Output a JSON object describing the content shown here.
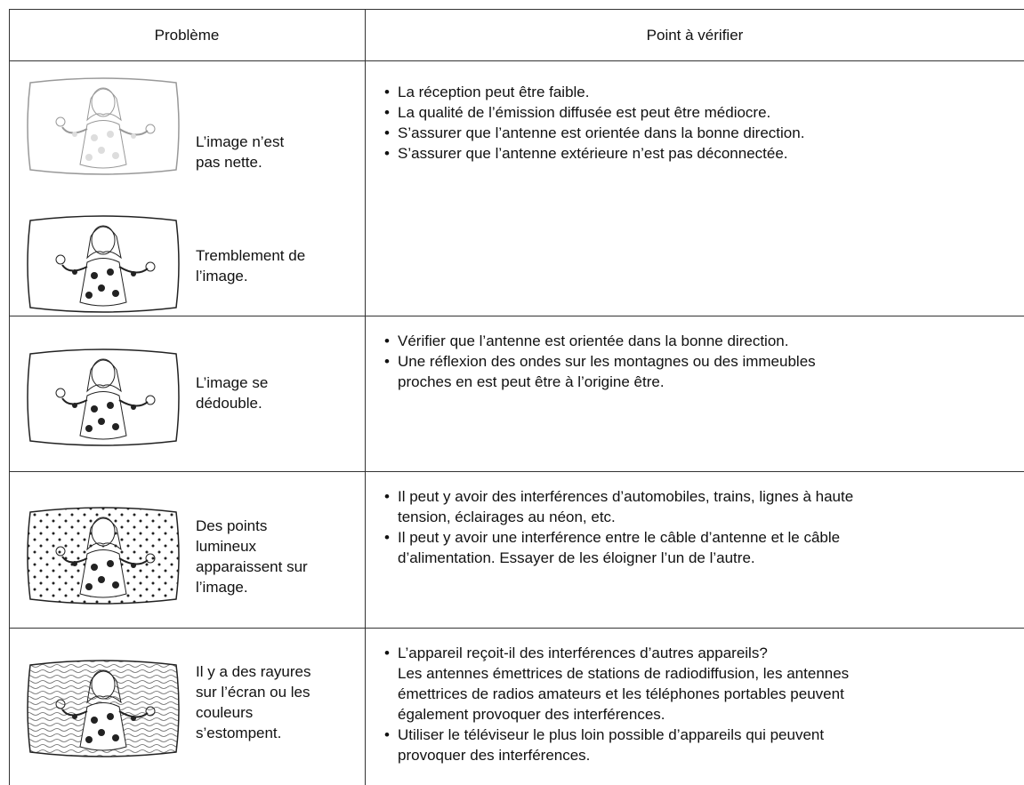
{
  "header": {
    "problem": "Problème",
    "check": "Point à vérifier"
  },
  "rows": [
    {
      "problems": [
        {
          "lines": [
            "L’image n’est",
            "pas nette."
          ]
        },
        {
          "lines": [
            "Tremblement de",
            "l’image."
          ]
        }
      ],
      "checks": [
        {
          "lines": [
            "La réception peut être faible."
          ]
        },
        {
          "lines": [
            "La qualité de l’émission diffusée est peut être médiocre."
          ]
        },
        {
          "lines": [
            "S’assurer que l’antenne est orientée dans la bonne direction."
          ]
        },
        {
          "lines": [
            "S’assurer que l’antenne extérieure n’est pas déconnectée."
          ]
        }
      ]
    },
    {
      "problems": [
        {
          "lines": [
            "L’image se",
            "dédouble."
          ]
        }
      ],
      "checks": [
        {
          "lines": [
            "Vérifier que l’antenne est orientée dans la bonne direction."
          ]
        },
        {
          "lines": [
            "Une réflexion des ondes sur les montagnes ou des immeubles",
            "proches en est peut être à l’origine être."
          ]
        }
      ]
    },
    {
      "problems": [
        {
          "lines": [
            "Des points",
            "lumineux",
            "apparaissent sur",
            "l’image."
          ]
        }
      ],
      "checks": [
        {
          "lines": [
            "Il peut y avoir des interférences d’automobiles, trains, lignes à haute",
            "tension, éclairages au néon, etc."
          ]
        },
        {
          "lines": [
            "Il peut y avoir une interférence entre le câble d’antenne et le câble",
            "d’alimentation. Essayer de les éloigner l’un de l’autre."
          ]
        }
      ]
    },
    {
      "problems": [
        {
          "lines": [
            "Il y a des rayures",
            "sur l’écran ou les",
            "couleurs",
            "s’estompent."
          ]
        }
      ],
      "checks": [
        {
          "lines": [
            "L’appareil reçoit-il des interférences d’autres appareils?",
            "Les antennes émettrices de stations de radiodiffusion, les antennes",
            "émettrices de radios amateurs et les téléphones portables peuvent",
            "également provoquer des interférences."
          ]
        },
        {
          "lines": [
            "Utiliser le téléviseur le plus loin possible d’appareils qui peuvent",
            "provoquer des interférences."
          ]
        }
      ]
    }
  ]
}
